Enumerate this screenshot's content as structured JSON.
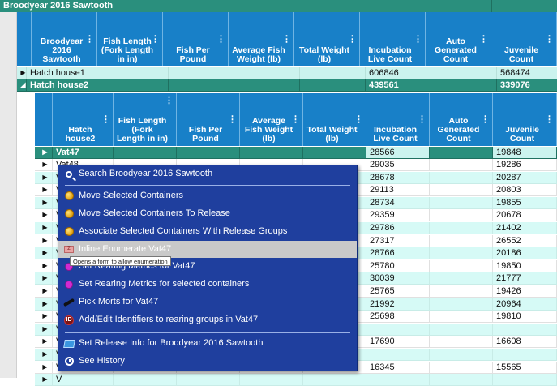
{
  "app": {
    "title": "Broodyear 2016 Sawtooth"
  },
  "outer_grid": {
    "columns": [
      "Broodyear 2016 Sawtooth",
      "Fish Length (Fork Length in in)",
      "Fish Per Pound",
      "Average Fish Weight (lb)",
      "Total Weight (lb)",
      "Incubation Live Count",
      "Auto Generated Count",
      "Juvenile Count"
    ],
    "rows": [
      {
        "name": "Hatch house1",
        "expander": "▶",
        "incubation": "606846",
        "juvenile": "568474"
      },
      {
        "name": "Hatch house2",
        "expander": "◢",
        "incubation": "439561",
        "juvenile": "339076"
      }
    ]
  },
  "inner_grid": {
    "columns": [
      "Hatch house2",
      "Fish Length (Fork Length in in)",
      "Fish Per Pound",
      "Average Fish Weight (lb)",
      "Total Weight (lb)",
      "Incubation Live Count",
      "Auto Generated Count",
      "Juvenile Count"
    ],
    "selected_row": {
      "name": "Vat47",
      "incubation": "28566",
      "juvenile": "19848"
    },
    "rows": [
      {
        "name": "Vat48",
        "incubation": "29035",
        "juvenile": "19286"
      },
      {
        "name": "V",
        "incubation": "28678",
        "juvenile": "20287"
      },
      {
        "name": "V",
        "incubation": "29113",
        "juvenile": "20803"
      },
      {
        "name": "V",
        "incubation": "28734",
        "juvenile": "19855"
      },
      {
        "name": "V",
        "incubation": "29359",
        "juvenile": "20678"
      },
      {
        "name": "V",
        "incubation": "29786",
        "juvenile": "21402"
      },
      {
        "name": "V",
        "incubation": "27317",
        "juvenile": "26552"
      },
      {
        "name": "V",
        "incubation": "28766",
        "juvenile": "20186"
      },
      {
        "name": "V",
        "incubation": "25780",
        "juvenile": "19850"
      },
      {
        "name": "V",
        "incubation": "30039",
        "juvenile": "21777"
      },
      {
        "name": "V",
        "incubation": "25765",
        "juvenile": "19426"
      },
      {
        "name": "V",
        "incubation": "21992",
        "juvenile": "20964"
      },
      {
        "name": "V",
        "incubation": "25698",
        "juvenile": "19810"
      },
      {
        "name": "V",
        "incubation": "",
        "juvenile": ""
      },
      {
        "name": "V",
        "incubation": "17690",
        "juvenile": "16608"
      },
      {
        "name": "V",
        "incubation": "",
        "juvenile": ""
      },
      {
        "name": "V",
        "incubation": "16345",
        "juvenile": "15565"
      },
      {
        "name": "V",
        "incubation": "",
        "juvenile": ""
      }
    ]
  },
  "context_menu": {
    "items": [
      {
        "label": "Search Broodyear 2016 Sawtooth",
        "icon": "search-icon"
      },
      {
        "label": "Move Selected Containers",
        "icon": "coin-icon"
      },
      {
        "label": "Move Selected Containers To Release",
        "icon": "coin-icon"
      },
      {
        "label": "Associate Selected Containers With Release Groups",
        "icon": "coin-icon"
      },
      {
        "label": "Inline Enumerate Vat47",
        "icon": "enumerate-icon"
      },
      {
        "label": "Set Rearing Metrics for Vat47",
        "icon": "pin-icon"
      },
      {
        "label": "Set Rearing Metrics for selected containers",
        "icon": "pin-icon"
      },
      {
        "label": "Pick Morts for Vat47",
        "icon": "mort-icon"
      },
      {
        "label": "Add/Edit Identifiers to rearing groups in Vat47",
        "icon": "identifier-icon"
      },
      {
        "label": "Set Release Info for Broodyear 2016 Sawtooth",
        "icon": "release-flag-icon"
      },
      {
        "label": "See History",
        "icon": "history-clock-icon"
      }
    ],
    "tooltip": "Opens a form to allow enumeration"
  },
  "colors": {
    "header_blue": "#1880c8",
    "teal": "#2a8f7d",
    "menu_bg": "#1f3f9e",
    "row_cyan": "#cbf3ee"
  }
}
